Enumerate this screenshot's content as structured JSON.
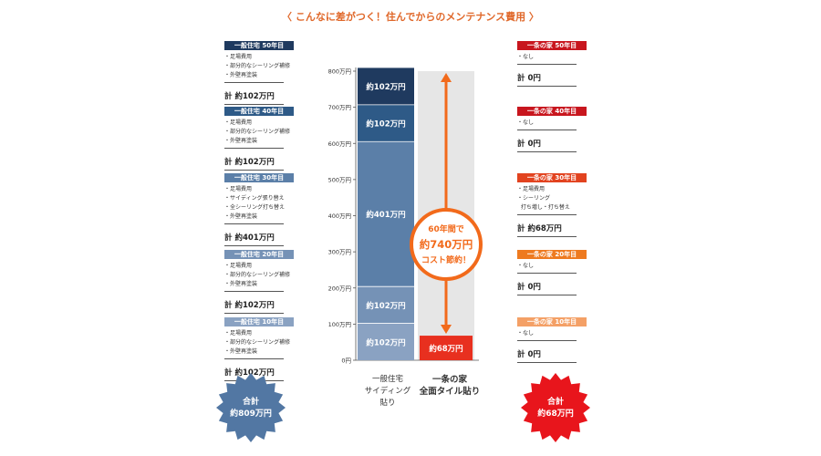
{
  "title": "〈 こんなに差がつく！住んでからのメンテナンス費用 〉",
  "colors": {
    "blue_50": "#1f3a5f",
    "blue_40": "#2e5a87",
    "blue_30": "#5b7fa8",
    "blue_20": "#7592b6",
    "blue_10": "#8aa2c2",
    "red_50": "#c8161e",
    "red_40": "#c8161e",
    "red_30": "#e2431f",
    "red_20": "#ee7a1f",
    "red_10": "#f4a066",
    "arrow": "#f26a1b",
    "gray_bar": "#e6e6e6",
    "ichijo_bar": "#e8301f"
  },
  "left_column": [
    {
      "badge": "一般住宅 50年目",
      "color_key": "blue_50",
      "lines": [
        "・足場費用",
        "・部分的なシーリング補修",
        "・外壁再塗装"
      ],
      "total": "計 約102万円"
    },
    {
      "badge": "一般住宅 40年目",
      "color_key": "blue_40",
      "lines": [
        "・足場費用",
        "・部分的なシーリング補修",
        "・外壁再塗装"
      ],
      "total": "計 約102万円"
    },
    {
      "badge": "一般住宅 30年目",
      "color_key": "blue_30",
      "lines": [
        "・足場費用",
        "・サイディング張り替え",
        "・全シーリング打ち替え",
        "・外壁再塗装"
      ],
      "total": "計 約401万円"
    },
    {
      "badge": "一般住宅 20年目",
      "color_key": "blue_20",
      "lines": [
        "・足場費用",
        "・部分的なシーリング補修",
        "・外壁再塗装"
      ],
      "total": "計 約102万円"
    },
    {
      "badge": "一般住宅 10年目",
      "color_key": "blue_10",
      "lines": [
        "・足場費用",
        "・部分的なシーリング補修",
        "・外壁再塗装"
      ],
      "total": "計 約102万円"
    }
  ],
  "right_column": [
    {
      "badge": "一条の家 50年目",
      "color_key": "red_50",
      "lines": [
        "・なし"
      ],
      "total": "計 0円"
    },
    {
      "badge": "一条の家 40年目",
      "color_key": "red_40",
      "lines": [
        "・なし"
      ],
      "total": "計 0円"
    },
    {
      "badge": "一条の家 30年目",
      "color_key": "red_30",
      "lines": [
        "・足場費用",
        "・シーリング",
        "  打ち増し・打ち替え"
      ],
      "total": "計 約68万円"
    },
    {
      "badge": "一条の家 20年目",
      "color_key": "red_20",
      "lines": [
        "・なし"
      ],
      "total": "計 0円"
    },
    {
      "badge": "一条の家 10年目",
      "color_key": "red_10",
      "lines": [
        "・なし"
      ],
      "total": "計 0円"
    }
  ],
  "left_total": {
    "label": "合計",
    "value": "約809万円"
  },
  "right_total": {
    "label": "合計",
    "value": "約68万円"
  },
  "savings": {
    "line1": "60年間で",
    "line2": "約740万円",
    "line3": "コスト節約！"
  },
  "chart_data": {
    "type": "bar",
    "unit": "万円",
    "ylim": [
      0,
      800
    ],
    "yticks": [
      "0円",
      "100万円",
      "200万円",
      "300万円",
      "400万円",
      "500万円",
      "600万円",
      "700万円",
      "800万円"
    ],
    "categories": [
      "一般住宅\nサイディング\n貼り",
      "一条の家\n全面タイル貼り"
    ],
    "stacks": [
      {
        "category": 0,
        "segments": [
          {
            "label": "約102万円",
            "value": 102,
            "color_key": "blue_10"
          },
          {
            "label": "約102万円",
            "value": 102,
            "color_key": "blue_20"
          },
          {
            "label": "約401万円",
            "value": 401,
            "color_key": "blue_30"
          },
          {
            "label": "約102万円",
            "value": 102,
            "color_key": "blue_40"
          },
          {
            "label": "約102万円",
            "value": 102,
            "color_key": "blue_50"
          }
        ]
      },
      {
        "category": 1,
        "segments": [
          {
            "label": "約68万円",
            "value": 68,
            "color_key": "ichijo_bar"
          }
        ]
      }
    ]
  }
}
